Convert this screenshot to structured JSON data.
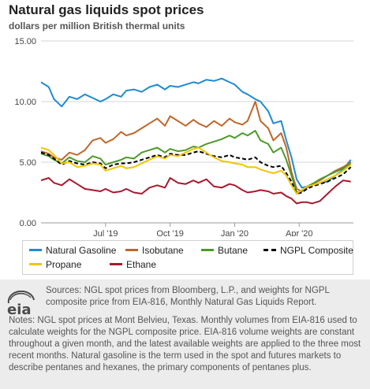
{
  "header": {
    "title": "Natural gas liquids spot prices",
    "subtitle": "dollars per million British thermal units"
  },
  "chart_data": {
    "type": "line",
    "y_ticks": [
      "15.00",
      "10.00",
      "5.00",
      "0.00"
    ],
    "y_tick_values": [
      15,
      10,
      5,
      0
    ],
    "x_ticks": [
      "Jul '19",
      "Oct '19",
      "Jan '20",
      "Apr '20"
    ],
    "x_tick_positions": [
      2019.5,
      2019.75,
      2020.0,
      2020.25
    ],
    "ylim": [
      0,
      15
    ],
    "xlim": [
      2019.25,
      2020.46
    ],
    "grid": true,
    "legend_placement": "bottom",
    "series": [
      {
        "name": "Natural Gasoline",
        "color": "#1f8bd0",
        "dash": false,
        "x": [
          2019.25,
          2019.28,
          2019.3,
          2019.33,
          2019.36,
          2019.39,
          2019.42,
          2019.45,
          2019.48,
          2019.5,
          2019.53,
          2019.56,
          2019.58,
          2019.61,
          2019.64,
          2019.67,
          2019.7,
          2019.73,
          2019.75,
          2019.78,
          2019.81,
          2019.84,
          2019.86,
          2019.89,
          2019.92,
          2019.95,
          2019.98,
          2020.0,
          2020.03,
          2020.05,
          2020.08,
          2020.1,
          2020.13,
          2020.15,
          2020.18,
          2020.2,
          2020.22,
          2020.24,
          2020.26,
          2020.28,
          2020.3,
          2020.33,
          2020.36,
          2020.39,
          2020.42,
          2020.45
        ],
        "y": [
          11.6,
          11.2,
          10.2,
          9.6,
          10.4,
          10.2,
          10.6,
          10.3,
          10.0,
          10.2,
          10.6,
          10.4,
          10.9,
          11.0,
          10.8,
          11.2,
          11.4,
          11.0,
          11.3,
          11.2,
          11.4,
          11.6,
          11.5,
          11.8,
          11.7,
          11.9,
          11.6,
          11.4,
          10.8,
          10.6,
          10.2,
          10.0,
          9.2,
          8.2,
          8.4,
          6.8,
          5.4,
          3.6,
          2.9,
          3.0,
          3.1,
          3.3,
          3.4,
          3.9,
          4.4,
          5.2
        ]
      },
      {
        "name": "Isobutane",
        "color": "#c0662a",
        "dash": false,
        "x": [
          2019.25,
          2019.28,
          2019.3,
          2019.33,
          2019.36,
          2019.39,
          2019.42,
          2019.45,
          2019.48,
          2019.5,
          2019.53,
          2019.56,
          2019.58,
          2019.61,
          2019.64,
          2019.67,
          2019.7,
          2019.73,
          2019.75,
          2019.78,
          2019.81,
          2019.84,
          2019.86,
          2019.89,
          2019.92,
          2019.95,
          2019.98,
          2020.0,
          2020.03,
          2020.05,
          2020.08,
          2020.1,
          2020.13,
          2020.15,
          2020.18,
          2020.2,
          2020.22,
          2020.24,
          2020.26,
          2020.28,
          2020.3,
          2020.33,
          2020.36,
          2020.39,
          2020.42,
          2020.45
        ],
        "y": [
          5.9,
          5.7,
          5.4,
          5.2,
          5.8,
          5.6,
          6.0,
          6.8,
          7.0,
          6.6,
          6.9,
          7.5,
          7.2,
          7.4,
          7.8,
          8.2,
          8.6,
          8.0,
          8.8,
          8.4,
          8.0,
          8.5,
          8.2,
          7.9,
          8.4,
          8.0,
          8.6,
          8.3,
          8.1,
          8.4,
          10.0,
          8.4,
          7.8,
          6.8,
          7.4,
          6.2,
          4.2,
          2.8,
          2.6,
          2.9,
          3.2,
          3.5,
          3.9,
          4.3,
          4.6,
          5.0
        ]
      },
      {
        "name": "Butane",
        "color": "#4d9a2a",
        "dash": false,
        "x": [
          2019.25,
          2019.28,
          2019.3,
          2019.33,
          2019.36,
          2019.39,
          2019.42,
          2019.45,
          2019.48,
          2019.5,
          2019.53,
          2019.56,
          2019.58,
          2019.61,
          2019.64,
          2019.67,
          2019.7,
          2019.73,
          2019.75,
          2019.78,
          2019.81,
          2019.84,
          2019.86,
          2019.89,
          2019.92,
          2019.95,
          2019.98,
          2020.0,
          2020.03,
          2020.05,
          2020.08,
          2020.1,
          2020.13,
          2020.15,
          2020.18,
          2020.2,
          2020.22,
          2020.24,
          2020.26,
          2020.28,
          2020.3,
          2020.33,
          2020.36,
          2020.39,
          2020.42,
          2020.45
        ],
        "y": [
          5.7,
          5.5,
          5.2,
          4.9,
          5.4,
          5.1,
          5.0,
          5.5,
          5.3,
          4.8,
          5.0,
          5.2,
          5.4,
          5.3,
          5.8,
          6.0,
          6.2,
          5.8,
          6.1,
          5.9,
          6.0,
          6.3,
          6.2,
          6.5,
          6.7,
          6.9,
          7.2,
          7.0,
          7.4,
          7.2,
          7.6,
          6.8,
          6.5,
          5.8,
          6.2,
          5.2,
          3.9,
          2.5,
          2.6,
          3.0,
          3.2,
          3.6,
          3.9,
          4.2,
          4.5,
          4.9
        ]
      },
      {
        "name": "NGPL Composite",
        "color": "#000000",
        "dash": true,
        "x": [
          2019.25,
          2019.28,
          2019.3,
          2019.33,
          2019.36,
          2019.39,
          2019.42,
          2019.45,
          2019.48,
          2019.5,
          2019.53,
          2019.56,
          2019.58,
          2019.61,
          2019.64,
          2019.67,
          2019.7,
          2019.73,
          2019.75,
          2019.78,
          2019.81,
          2019.84,
          2019.86,
          2019.89,
          2019.92,
          2019.95,
          2019.98,
          2020.0,
          2020.03,
          2020.05,
          2020.08,
          2020.1,
          2020.13,
          2020.15,
          2020.18,
          2020.2,
          2020.22,
          2020.24,
          2020.26,
          2020.28,
          2020.3,
          2020.33,
          2020.36,
          2020.39,
          2020.42,
          2020.45
        ],
        "y": [
          5.8,
          5.6,
          5.3,
          4.8,
          5.1,
          4.9,
          4.8,
          5.0,
          4.9,
          4.5,
          4.8,
          4.9,
          4.9,
          5.0,
          5.2,
          5.4,
          5.6,
          5.4,
          5.7,
          5.6,
          5.6,
          5.8,
          5.9,
          5.7,
          5.5,
          5.4,
          5.6,
          5.4,
          5.3,
          5.2,
          5.4,
          5.0,
          4.7,
          4.6,
          4.7,
          4.1,
          3.4,
          2.4,
          2.5,
          2.8,
          3.0,
          3.2,
          3.4,
          3.7,
          4.0,
          4.6
        ]
      },
      {
        "name": "Propane",
        "color": "#f2c500",
        "dash": false,
        "x": [
          2019.25,
          2019.28,
          2019.3,
          2019.33,
          2019.36,
          2019.39,
          2019.42,
          2019.45,
          2019.48,
          2019.5,
          2019.53,
          2019.56,
          2019.58,
          2019.61,
          2019.64,
          2019.67,
          2019.7,
          2019.73,
          2019.75,
          2019.78,
          2019.81,
          2019.84,
          2019.86,
          2019.89,
          2019.92,
          2019.95,
          2019.98,
          2020.0,
          2020.03,
          2020.05,
          2020.08,
          2020.1,
          2020.13,
          2020.15,
          2020.18,
          2020.2,
          2020.22,
          2020.24,
          2020.26,
          2020.28,
          2020.3,
          2020.33,
          2020.36,
          2020.39,
          2020.42,
          2020.45
        ],
        "y": [
          6.2,
          6.0,
          5.6,
          4.9,
          5.0,
          4.6,
          4.7,
          4.9,
          4.8,
          4.3,
          4.5,
          4.7,
          4.5,
          4.6,
          4.9,
          5.2,
          5.5,
          5.3,
          5.6,
          5.5,
          5.8,
          6.1,
          6.2,
          5.8,
          5.4,
          5.1,
          5.0,
          4.9,
          4.8,
          4.6,
          4.6,
          4.4,
          4.2,
          4.1,
          4.3,
          3.9,
          3.1,
          2.4,
          2.7,
          3.0,
          3.1,
          3.3,
          3.6,
          3.9,
          4.3,
          4.8
        ]
      },
      {
        "name": "Ethane",
        "color": "#a8192d",
        "dash": false,
        "x": [
          2019.25,
          2019.28,
          2019.3,
          2019.33,
          2019.36,
          2019.39,
          2019.42,
          2019.45,
          2019.48,
          2019.5,
          2019.53,
          2019.56,
          2019.58,
          2019.61,
          2019.64,
          2019.67,
          2019.7,
          2019.73,
          2019.75,
          2019.78,
          2019.81,
          2019.84,
          2019.86,
          2019.89,
          2019.92,
          2019.95,
          2019.98,
          2020.0,
          2020.03,
          2020.05,
          2020.08,
          2020.1,
          2020.13,
          2020.15,
          2020.18,
          2020.2,
          2020.22,
          2020.24,
          2020.26,
          2020.28,
          2020.3,
          2020.33,
          2020.36,
          2020.39,
          2020.42,
          2020.45
        ],
        "y": [
          3.5,
          3.7,
          3.3,
          3.1,
          3.6,
          3.2,
          2.8,
          2.7,
          2.6,
          2.8,
          2.5,
          2.6,
          2.8,
          2.5,
          2.4,
          2.9,
          3.1,
          2.9,
          3.7,
          3.3,
          3.2,
          3.5,
          3.3,
          3.6,
          3.0,
          2.9,
          3.2,
          3.1,
          2.7,
          2.5,
          2.6,
          2.7,
          2.6,
          2.4,
          2.5,
          2.2,
          2.0,
          1.6,
          1.7,
          1.7,
          1.6,
          1.8,
          2.4,
          3.0,
          3.5,
          3.4
        ]
      }
    ]
  },
  "legend": {
    "items": [
      "Natural Gasoline",
      "Isobutane",
      "Butane",
      "NGPL Composite",
      "Propane",
      "Ethane"
    ]
  },
  "footer": {
    "logo_text": "eia",
    "sources": "Sources: NGL spot prices from Bloomberg, L.P., and weights for NGPL composite price from EIA-816, Monthly Natural Gas Liquids Report.",
    "notes": "Notes: NGL spot prices at Mont Belvieu, Texas. Monthly volumes from EIA-816 used to calculate weights for the NGPL composite price. EIA-816 volume weights are constant throughout a given month, and the latest available weights are applied to the three most recent months. Natural gasoline is the term used in the spot and futures markets to describe pentanes and hexanes, the primary components of pentanes plus."
  }
}
